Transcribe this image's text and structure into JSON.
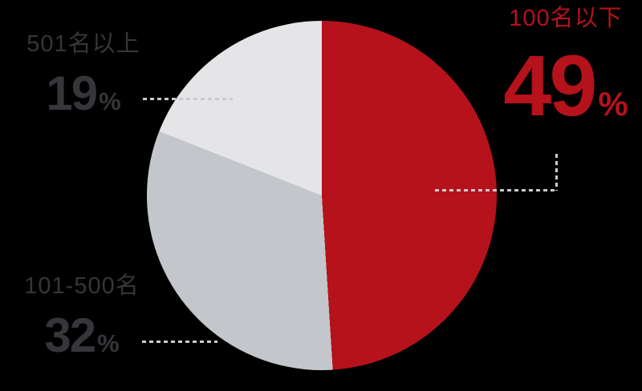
{
  "chart_data": {
    "type": "pie",
    "unit": "%",
    "start_angle_deg": 0,
    "direction": "clockwise",
    "legend_position": "callout-labels",
    "slices": [
      {
        "label": "100名以下",
        "value": 49,
        "color": "#b5121c"
      },
      {
        "label": "101-500名",
        "value": 32,
        "color": "#c3c6ca"
      },
      {
        "label": "501名以上",
        "value": 19,
        "color": "#e5e5e7"
      }
    ]
  },
  "colors": {
    "background": "#000000",
    "accent_red": "#b5121c",
    "label_text": "#35363a",
    "leader_line": "#c9cbcf"
  }
}
